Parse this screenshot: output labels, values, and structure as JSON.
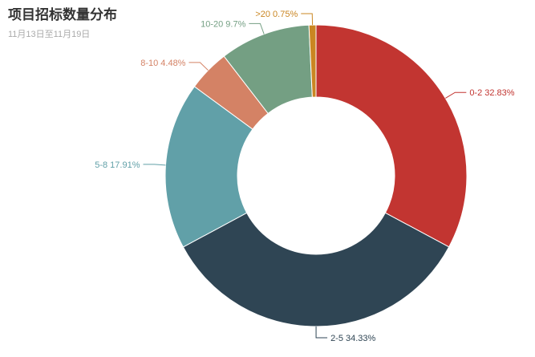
{
  "chart_data": {
    "type": "pie",
    "title": "项目招标数量分布",
    "subtitle": "11月13日至11月19日",
    "donut": true,
    "slices": [
      {
        "name": "0-2",
        "value": 32.83,
        "label": "0-2 32.83%",
        "color": "#c23531"
      },
      {
        "name": "2-5",
        "value": 34.33,
        "label": "2-5 34.33%",
        "color": "#2f4554"
      },
      {
        "name": "5-8",
        "value": 17.91,
        "label": "5-8 17.91%",
        "color": "#61a0a8"
      },
      {
        "name": "8-10",
        "value": 4.48,
        "label": "8-10 4.48%",
        "color": "#d48265"
      },
      {
        "name": "10-20",
        "value": 9.7,
        "label": "10-20 9.7%",
        "color": "#749f83"
      },
      {
        "name": ">20",
        "value": 0.75,
        "label": ">20 0.75%",
        "color": "#ca8622"
      }
    ]
  }
}
